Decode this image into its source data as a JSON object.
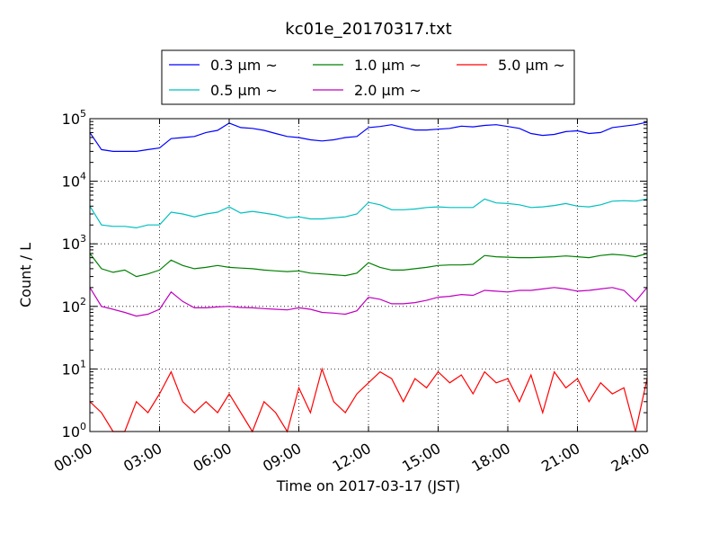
{
  "chart_data": {
    "type": "line",
    "title": "kc01e_20170317.txt",
    "xlabel": "Time on 2017-03-17 (JST)",
    "ylabel": "Count / L",
    "yscale": "log",
    "ylim": [
      1,
      100000
    ],
    "xlim": [
      "00:00",
      "24:00"
    ],
    "x_ticks": [
      "00:00",
      "03:00",
      "06:00",
      "09:00",
      "12:00",
      "15:00",
      "18:00",
      "21:00",
      "24:00"
    ],
    "y_ticks": [
      {
        "base": "10",
        "exp": "0"
      },
      {
        "base": "10",
        "exp": "1"
      },
      {
        "base": "10",
        "exp": "2"
      },
      {
        "base": "10",
        "exp": "3"
      },
      {
        "base": "10",
        "exp": "4"
      },
      {
        "base": "10",
        "exp": "5"
      }
    ],
    "grid": "dotted, major ticks",
    "legend": "top (above plot), boxed, 3 columns",
    "x": [
      "00:00",
      "00:30",
      "01:00",
      "01:30",
      "02:00",
      "02:30",
      "03:00",
      "03:30",
      "04:00",
      "04:30",
      "05:00",
      "05:30",
      "06:00",
      "06:30",
      "07:00",
      "07:30",
      "08:00",
      "08:30",
      "09:00",
      "09:30",
      "10:00",
      "10:30",
      "11:00",
      "11:30",
      "12:00",
      "12:30",
      "13:00",
      "13:30",
      "14:00",
      "14:30",
      "15:00",
      "15:30",
      "16:00",
      "16:30",
      "17:00",
      "17:30",
      "18:00",
      "18:30",
      "19:00",
      "19:30",
      "20:00",
      "20:30",
      "21:00",
      "21:30",
      "22:00",
      "22:30",
      "23:00",
      "23:30",
      "24:00"
    ],
    "series": [
      {
        "name": "0.3 μm ~",
        "color": "#0000ff",
        "values": [
          60000,
          32000,
          30000,
          30000,
          30000,
          32000,
          34000,
          48000,
          50000,
          52000,
          60000,
          65000,
          85000,
          72000,
          70000,
          65000,
          58000,
          52000,
          50000,
          46000,
          44000,
          46000,
          50000,
          52000,
          72000,
          75000,
          80000,
          72000,
          66000,
          66000,
          68000,
          70000,
          76000,
          74000,
          78000,
          80000,
          75000,
          70000,
          58000,
          54000,
          56000,
          62000,
          64000,
          58000,
          60000,
          72000,
          76000,
          80000,
          88000
        ]
      },
      {
        "name": "0.5 μm ~",
        "color": "#00bfbf",
        "values": [
          4000,
          2000,
          1900,
          1900,
          1800,
          2000,
          2000,
          3200,
          3000,
          2700,
          3000,
          3200,
          3900,
          3100,
          3300,
          3100,
          2900,
          2600,
          2700,
          2500,
          2500,
          2600,
          2700,
          3000,
          4600,
          4200,
          3500,
          3500,
          3600,
          3800,
          3900,
          3800,
          3800,
          3800,
          5200,
          4500,
          4400,
          4200,
          3800,
          3900,
          4100,
          4400,
          4000,
          3900,
          4200,
          4800,
          4900,
          4800,
          5200
        ]
      },
      {
        "name": "1.0 μm ~",
        "color": "#008000",
        "values": [
          700,
          400,
          350,
          380,
          300,
          330,
          380,
          550,
          450,
          400,
          420,
          450,
          420,
          410,
          400,
          380,
          370,
          360,
          370,
          340,
          330,
          320,
          310,
          340,
          500,
          420,
          380,
          380,
          400,
          420,
          450,
          460,
          460,
          470,
          650,
          620,
          610,
          600,
          600,
          610,
          620,
          640,
          620,
          600,
          650,
          680,
          660,
          620,
          700
        ]
      },
      {
        "name": "2.0 μm ~",
        "color": "#bf00bf",
        "values": [
          200,
          100,
          90,
          80,
          70,
          75,
          90,
          170,
          120,
          95,
          95,
          98,
          100,
          96,
          95,
          92,
          90,
          88,
          95,
          90,
          80,
          78,
          75,
          85,
          140,
          130,
          110,
          110,
          115,
          125,
          140,
          145,
          155,
          150,
          180,
          175,
          170,
          180,
          180,
          190,
          200,
          190,
          175,
          180,
          190,
          200,
          180,
          120,
          200
        ]
      },
      {
        "name": "5.0 μm ~",
        "color": "#ff0000",
        "values": [
          3,
          2,
          1,
          1,
          3,
          2,
          4,
          9,
          3,
          2,
          3,
          2,
          4,
          2,
          1,
          3,
          2,
          1,
          5,
          2,
          10,
          3,
          2,
          4,
          6,
          9,
          7,
          3,
          7,
          5,
          9,
          6,
          8,
          4,
          9,
          6,
          7,
          3,
          8,
          2,
          9,
          5,
          7,
          3,
          6,
          4,
          5,
          1,
          7
        ]
      }
    ]
  }
}
